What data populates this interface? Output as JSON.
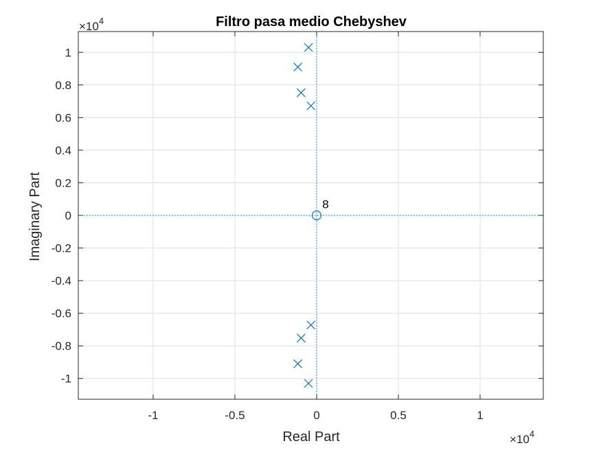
{
  "chart_data": {
    "type": "scatter",
    "title": "Filtro pasa medio Chebyshev",
    "xlabel": "Real Part",
    "ylabel": "Imaginary Part",
    "x_exponent_label": {
      "base": "×10",
      "power": "4"
    },
    "y_exponent_label": {
      "base": "×10",
      "power": "4"
    },
    "xlim": [
      -1.4577,
      1.3865
    ],
    "ylim": [
      -1.1273,
      1.1273
    ],
    "xticks": [
      -1,
      -0.5,
      0,
      0.5,
      1
    ],
    "xtick_labels": [
      "-1",
      "-0.5",
      "0",
      "0.5",
      "1"
    ],
    "yticks": [
      -1,
      -0.8,
      -0.6,
      -0.4,
      -0.2,
      0,
      0.2,
      0.4,
      0.6,
      0.8,
      1
    ],
    "ytick_labels": [
      "-1",
      "-0.8",
      "-0.6",
      "-0.4",
      "-0.2",
      "0",
      "0.2",
      "0.4",
      "0.6",
      "0.8",
      "1"
    ],
    "grid": true,
    "series": [
      {
        "marker": "x",
        "color": "#0072BD",
        "points": [
          {
            "x": -0.05,
            "y": 1.03
          },
          {
            "x": -0.115,
            "y": 0.91
          },
          {
            "x": -0.095,
            "y": 0.752
          },
          {
            "x": -0.035,
            "y": 0.672
          },
          {
            "x": -0.035,
            "y": -0.672
          },
          {
            "x": -0.095,
            "y": -0.752
          },
          {
            "x": -0.115,
            "y": -0.91
          },
          {
            "x": -0.05,
            "y": -1.03
          }
        ]
      },
      {
        "marker": "o",
        "color": "#0072BD",
        "points": [
          {
            "x": 0,
            "y": 0
          }
        ]
      }
    ],
    "annotations": [
      {
        "text": "8",
        "x": 0.035,
        "y": 0.045
      }
    ],
    "reference_lines": {
      "x": 0,
      "y": 0,
      "style": "dotted",
      "color": "#0072BD"
    }
  }
}
